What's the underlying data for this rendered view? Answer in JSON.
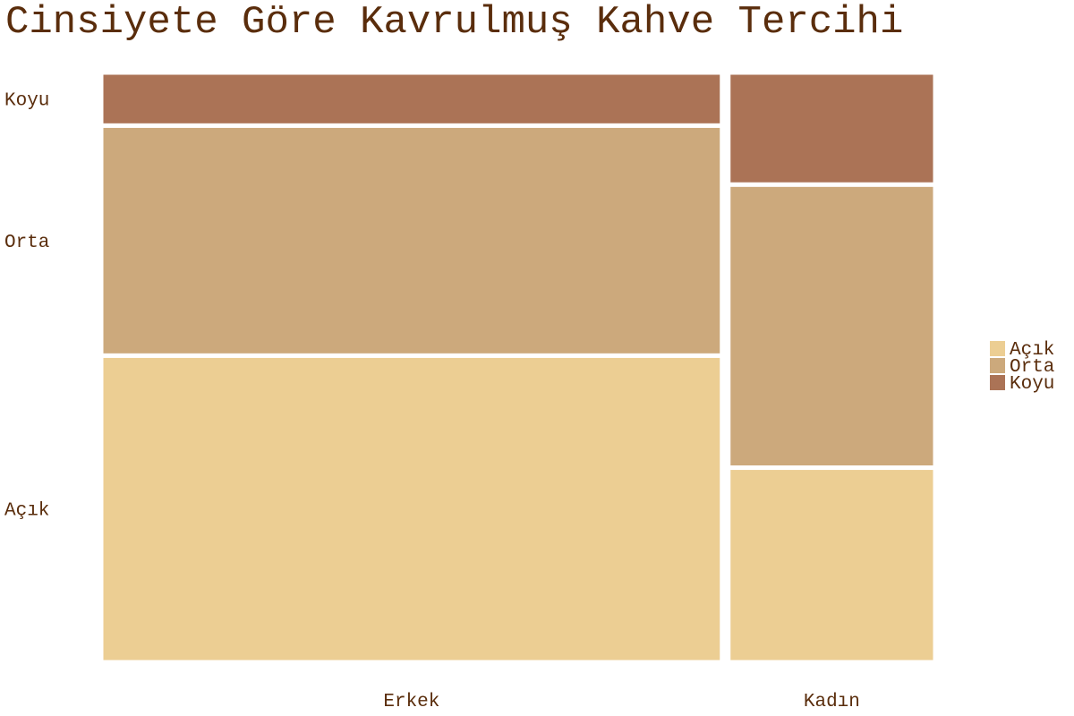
{
  "chart_data": {
    "type": "mosaic",
    "title": "Cinsiyete Göre Kavrulmuş Kahve Tercihi",
    "xlabel": "",
    "ylabel": "",
    "categories": [
      "Erkek",
      "Kadın"
    ],
    "category_shares": [
      0.75,
      0.25
    ],
    "series": [
      {
        "name": "Açık",
        "values": [
          0.52,
          0.33
        ]
      },
      {
        "name": "Orta",
        "values": [
          0.39,
          0.48
        ]
      },
      {
        "name": "Koyu",
        "values": [
          0.09,
          0.19
        ]
      }
    ],
    "colors": {
      "Açık": "#ecce93",
      "Orta": "#cca97c",
      "Koyu": "#ab7356"
    },
    "text_color": "#5a2d0c",
    "legend_position": "right",
    "grid": false
  }
}
